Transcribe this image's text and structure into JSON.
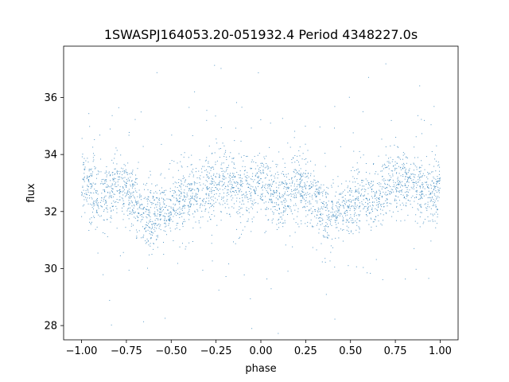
{
  "chart_data": {
    "type": "scatter",
    "title": "1SWASPJ164053.20-051932.4 Period 4348227.0s",
    "xlabel": "phase",
    "ylabel": "flux",
    "xlim": [
      -1.1,
      1.1
    ],
    "ylim": [
      27.5,
      37.8
    ],
    "x_ticks": [
      -1.0,
      -0.75,
      -0.5,
      -0.25,
      0.0,
      0.25,
      0.5,
      0.75,
      1.0
    ],
    "x_tick_labels": [
      "−1.00",
      "−0.75",
      "−0.50",
      "−0.25",
      "0.00",
      "0.25",
      "0.50",
      "0.75",
      "1.00"
    ],
    "y_ticks": [
      28,
      30,
      32,
      34,
      36
    ],
    "y_tick_labels": [
      "28",
      "30",
      "32",
      "34",
      "36"
    ],
    "grid": false,
    "point_color": "#1f77b4",
    "phase_range": [
      -1.0,
      1.0
    ],
    "trend_phase": [
      0.0,
      0.05,
      0.1,
      0.15,
      0.2,
      0.25,
      0.3,
      0.35,
      0.4,
      0.45,
      0.5,
      0.55,
      0.6,
      0.65,
      0.7,
      0.75,
      0.8,
      0.85,
      0.9,
      0.95,
      1.0
    ],
    "trend_flux": [
      33.1,
      32.8,
      32.5,
      32.7,
      32.9,
      32.8,
      32.3,
      31.9,
      31.8,
      32.0,
      32.2,
      32.4,
      32.5,
      32.6,
      32.8,
      33.0,
      33.1,
      32.9,
      32.7,
      32.6,
      33.1
    ]
  }
}
